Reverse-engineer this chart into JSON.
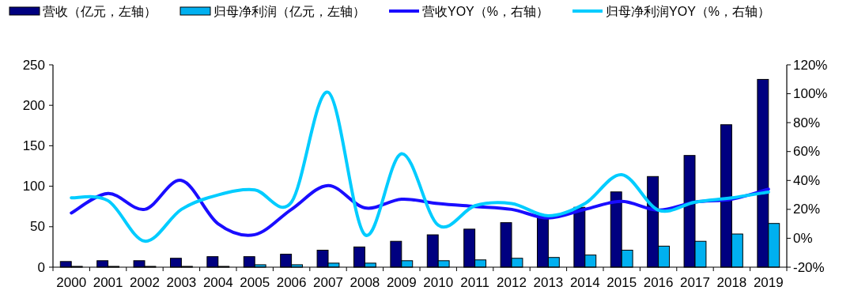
{
  "chart_data": {
    "type": "bar",
    "categories": [
      "2000",
      "2001",
      "2002",
      "2003",
      "2004",
      "2005",
      "2006",
      "2007",
      "2008",
      "2009",
      "2010",
      "2011",
      "2012",
      "2013",
      "2014",
      "2015",
      "2016",
      "2017",
      "2018",
      "2019"
    ],
    "series": [
      {
        "name": "营收（亿元，左轴）",
        "color": "#000080",
        "values": [
          7,
          8,
          8,
          11,
          13,
          13,
          16,
          21,
          25,
          32,
          40,
          47,
          55,
          64,
          74,
          93,
          112,
          138,
          176,
          232
        ]
      },
      {
        "name": "归母净利润（亿元，左轴）",
        "color": "#00b0f0",
        "values": [
          1,
          1,
          1,
          1,
          1,
          3,
          3,
          5,
          5,
          8,
          8,
          9,
          11,
          12,
          15,
          21,
          26,
          32,
          41,
          54
        ]
      },
      {
        "name": "营收YOY（%，右轴）",
        "type": "line",
        "axis": "y2",
        "color": "#1a0dff",
        "values": [
          17.5,
          31,
          20,
          40,
          10,
          2.5,
          20,
          36.5,
          21,
          27,
          24,
          22,
          20,
          14,
          20,
          25.5,
          19.5,
          25,
          27,
          34
        ]
      },
      {
        "name": "归母净利润YOY（%，右轴）",
        "type": "line",
        "axis": "y2",
        "color": "#00ccff",
        "values": [
          28,
          26,
          -2,
          20,
          30,
          33.5,
          25,
          101,
          2.5,
          58.5,
          9,
          22.5,
          24,
          15.5,
          24,
          44,
          19.5,
          25,
          28,
          32
        ]
      }
    ],
    "ylim": [
      0,
      250
    ],
    "yticks": [
      0,
      50,
      100,
      150,
      200,
      250
    ],
    "y2lim": [
      -20,
      120
    ],
    "y2ticks": [
      {
        "value": -20,
        "label": "-20%"
      },
      {
        "value": 0,
        "label": "0%"
      },
      {
        "value": 20,
        "label": "20%"
      },
      {
        "value": 40,
        "label": "40%"
      },
      {
        "value": 60,
        "label": "60%"
      },
      {
        "value": 80,
        "label": "80%"
      },
      {
        "value": 100,
        "label": "100%"
      },
      {
        "value": 120,
        "label": "120%"
      }
    ],
    "grid": false,
    "legend": "top"
  }
}
